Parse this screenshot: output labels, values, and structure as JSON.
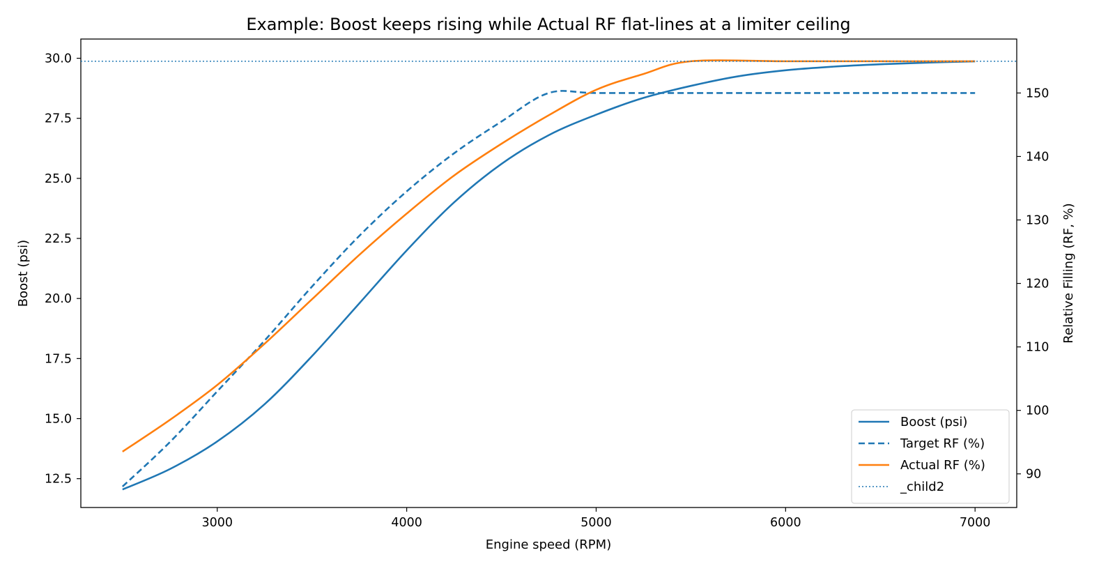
{
  "chart_data": {
    "type": "line",
    "title": "Example: Boost keeps rising while Actual RF flat-lines at a limiter ceiling",
    "xlabel": "Engine speed (RPM)",
    "ylabel": "Boost (psi)",
    "y2label": "Relative Filling (RF, %)",
    "xlim": [
      2280,
      7220
    ],
    "ylim": [
      11.3,
      30.8
    ],
    "y2lim": [
      84.7,
      158.5
    ],
    "xticks": [
      3000,
      4000,
      5000,
      6000,
      7000
    ],
    "yticks": [
      12.5,
      15.0,
      17.5,
      20.0,
      22.5,
      25.0,
      27.5,
      30.0
    ],
    "y2ticks": [
      90,
      100,
      110,
      120,
      130,
      140,
      150
    ],
    "legend_position": "lower-right",
    "grid": false,
    "series": [
      {
        "name": "Boost (psi)",
        "axis": "left",
        "color": "#1f77b4",
        "style": "solid",
        "x": [
          2500,
          2750,
          3000,
          3250,
          3500,
          3750,
          4000,
          4250,
          4500,
          4750,
          5000,
          5250,
          5500,
          5750,
          6000,
          6250,
          6500,
          6750,
          7000
        ],
        "values": [
          12.05,
          12.9,
          14.05,
          15.6,
          17.6,
          19.8,
          22.0,
          24.0,
          25.6,
          26.8,
          27.65,
          28.35,
          28.85,
          29.25,
          29.5,
          29.65,
          29.75,
          29.82,
          29.87
        ]
      },
      {
        "name": "Target RF (%)",
        "axis": "right",
        "color": "#1f77b4",
        "style": "dashed",
        "x": [
          2500,
          2750,
          3000,
          3250,
          3500,
          3750,
          4000,
          4250,
          4500,
          4750,
          5000,
          5500,
          6000,
          6500,
          7000
        ],
        "values": [
          88,
          95,
          103,
          111,
          119.5,
          127.5,
          134.5,
          140.5,
          145.5,
          150,
          150,
          150,
          150,
          150,
          150
        ]
      },
      {
        "name": "Actual RF (%)",
        "axis": "right",
        "color": "#ff7f0e",
        "style": "solid",
        "x": [
          2500,
          2750,
          3000,
          3250,
          3500,
          3750,
          4000,
          4250,
          4500,
          4750,
          5000,
          5250,
          5500,
          6000,
          6500,
          7000
        ],
        "values": [
          93.5,
          98.5,
          104,
          110.5,
          117.5,
          124.5,
          131,
          137,
          142,
          146.5,
          150.5,
          153,
          155,
          155,
          155,
          155
        ]
      },
      {
        "name": "_child2",
        "axis": "right",
        "color": "#1f77b4",
        "style": "dotted",
        "x": [
          2280,
          7220
        ],
        "values": [
          155,
          155
        ]
      }
    ]
  }
}
